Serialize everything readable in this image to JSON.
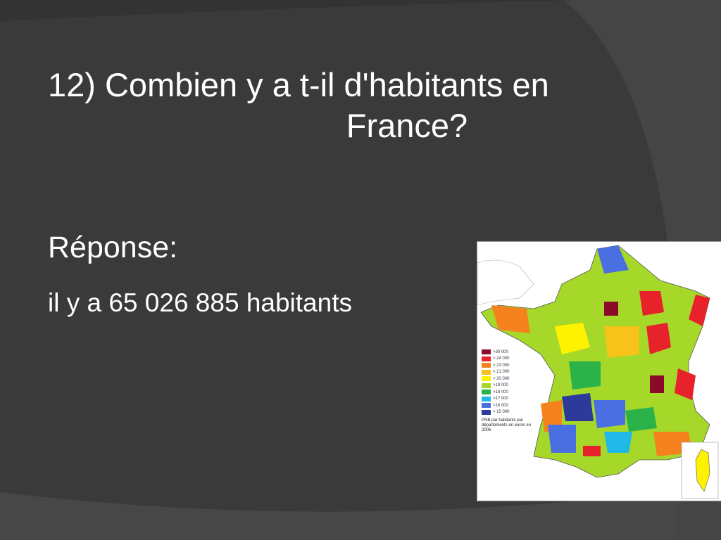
{
  "slide": {
    "title_line1": "12) Combien y a t-il d'habitants en",
    "title_line2": "France?",
    "response_label": "Réponse:",
    "answer": "il y a 65 026 885 habitants"
  },
  "map": {
    "legend": [
      {
        "label": ">30 000",
        "color": "#8b0a2a"
      },
      {
        "label": "> 24 000",
        "color": "#e8222a"
      },
      {
        "label": "> 23 000",
        "color": "#f5821f"
      },
      {
        "label": "> 21 000",
        "color": "#f7c21a"
      },
      {
        "label": "> 20 000",
        "color": "#fff200"
      },
      {
        "label": ">19 000",
        "color": "#a6d82a"
      },
      {
        "label": ">18 000",
        "color": "#2bb34a"
      },
      {
        "label": ">17 000",
        "color": "#1fb8e8"
      },
      {
        "label": ">16 000",
        "color": "#4a6fe0"
      },
      {
        "label": "> 15 000",
        "color": "#2e3a9a"
      }
    ],
    "caption": "PNB par habitants par départements en euros en 2006"
  }
}
